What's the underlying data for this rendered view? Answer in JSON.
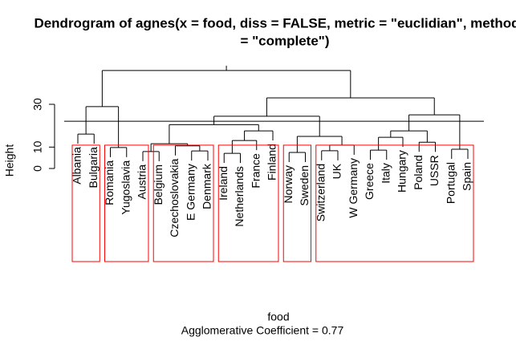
{
  "chart_data": {
    "type": "dendrogram",
    "title": "Dendrogram of  agnes(x = food, diss = FALSE, metric = \"euclidian\", method",
    "title_line2": "= \"complete\")",
    "ylabel": "Height",
    "xlabel": "food",
    "subtitle": "Agglomerative Coefficient =  0.77",
    "ylim": [
      0,
      48
    ],
    "yticks": [
      0,
      10,
      30
    ],
    "hline": 22.1,
    "rect_color": "#ff0000",
    "rect_top": 10.9,
    "rect_groups": [
      {
        "first": "Albania",
        "last": "Bulgaria"
      },
      {
        "first": "Romania",
        "last": "Austria"
      },
      {
        "first": "Belgium",
        "last": "Denmark"
      },
      {
        "first": "Ireland",
        "last": "Finland"
      },
      {
        "first": "Norway",
        "last": "Sweden"
      },
      {
        "first": "Switzerland",
        "last": "Spain"
      }
    ],
    "tree": {
      "height": 45.8,
      "children": [
        {
          "height": 28.9,
          "children": [
            {
              "height": 16.1,
              "children": [
                "Albania",
                "Bulgaria"
              ]
            },
            {
              "height": 9.8,
              "children": [
                "Romania",
                "Yugoslavia"
              ]
            }
          ]
        },
        {
          "height": 33.0,
          "children": [
            {
              "height": 24.4,
              "children": [
                {
                  "height": 20.5,
                  "children": [
                    {
                      "height": 11.6,
                      "children": [
                        {
                          "height": 7.9,
                          "children": [
                            "Austria",
                            "Belgium"
                          ]
                        },
                        {
                          "height": 10.6,
                          "children": [
                            "Czechoslovakia",
                            {
                              "height": 8.2,
                              "children": [
                                "E Germany",
                                "Denmark"
                              ]
                            }
                          ]
                        }
                      ]
                    },
                    {
                      "height": 17.6,
                      "children": [
                        {
                          "height": 13.1,
                          "children": [
                            {
                              "height": 7.1,
                              "children": [
                                "Ireland",
                                "Netherlands"
                              ]
                            },
                            "France"
                          ]
                        },
                        "Finland"
                      ]
                    }
                  ]
                },
                {
                  "height": 15.0,
                  "children": [
                    {
                      "height": 7.5,
                      "children": [
                        "Norway",
                        "Sweden"
                      ]
                    },
                    {
                      "height": 10.9,
                      "children": [
                        {
                          "height": 8.3,
                          "children": [
                            "Switzerland",
                            "UK"
                          ]
                        },
                        "W Germany"
                      ]
                    }
                  ]
                }
              ]
            },
            {
              "height": 25.1,
              "children": [
                {
                  "height": 17.6,
                  "children": [
                    {
                      "height": 14.6,
                      "children": [
                        {
                          "height": 8.6,
                          "children": [
                            "Greece",
                            "Italy"
                          ]
                        },
                        "Hungary"
                      ]
                    },
                    {
                      "height": 12.3,
                      "children": [
                        "Poland",
                        "USSR"
                      ]
                    }
                  ]
                },
                {
                  "height": 9.0,
                  "children": [
                    "Portugal",
                    "Spain"
                  ]
                }
              ]
            }
          ]
        }
      ]
    }
  }
}
